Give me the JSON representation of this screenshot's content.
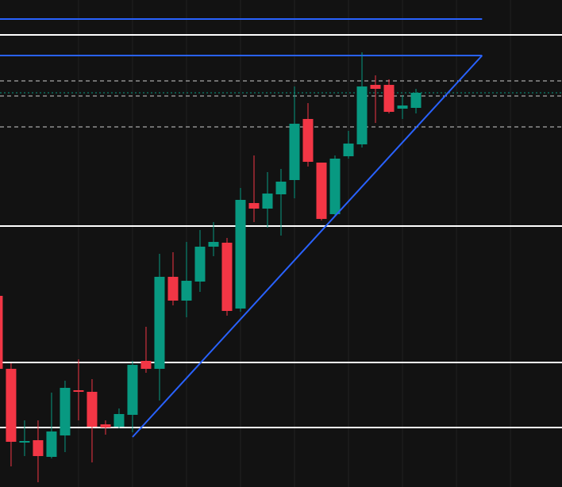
{
  "chart_data": {
    "type": "candlestick",
    "x": [
      0,
      1,
      2,
      3,
      4,
      5,
      6,
      7,
      8,
      9,
      10,
      11,
      12,
      13,
      14,
      15,
      16,
      17,
      18,
      19,
      20,
      21,
      22,
      23,
      24,
      25,
      26,
      27,
      28,
      29,
      30,
      31
    ],
    "open": [
      241,
      149,
      56,
      59,
      38,
      65,
      122,
      120,
      79,
      76,
      91,
      159,
      149,
      265,
      235,
      259,
      303,
      308,
      225,
      358,
      351,
      369,
      387,
      464,
      409,
      344,
      417,
      432,
      507,
      507,
      477,
      478
    ],
    "high": [
      241,
      156,
      84,
      84,
      119,
      134,
      161,
      136,
      84,
      99,
      159,
      202,
      294,
      296,
      309,
      324,
      334,
      314,
      377,
      418,
      397,
      401,
      505,
      484,
      409,
      418,
      449,
      548,
      519,
      514,
      494,
      502
    ],
    "low": [
      144,
      26,
      39,
      6,
      36,
      44,
      84,
      31,
      66,
      74,
      69,
      144,
      109,
      229,
      214,
      246,
      291,
      216,
      221,
      334,
      327,
      317,
      364,
      404,
      336,
      342,
      414,
      428,
      459,
      471,
      464,
      471
    ],
    "close": [
      149,
      57,
      58,
      39,
      70,
      125,
      120,
      76,
      75,
      92,
      154,
      149,
      265,
      235,
      260,
      303,
      309,
      222,
      362,
      351,
      370,
      385,
      458,
      410,
      338,
      414,
      433,
      505,
      502,
      473,
      481,
      497
    ],
    "up_color": "#089981",
    "down_color": "#f23645",
    "xlim": [
      0.18,
      41.82
    ],
    "ylim": [
      0,
      614
    ],
    "xgrid": [
      6,
      10,
      14,
      18,
      22,
      26,
      30,
      34,
      38
    ],
    "hlines": [
      {
        "value": 590,
        "color": "#2962ff",
        "style": "solid",
        "x_end": 35.9
      },
      {
        "value": 544,
        "color": "#2962ff",
        "style": "solid",
        "x_end": 35.9
      },
      {
        "value": 570,
        "color": "#ffffff",
        "style": "solid"
      },
      {
        "value": 329,
        "color": "#ffffff",
        "style": "solid"
      },
      {
        "value": 157,
        "color": "#ffffff",
        "style": "solid"
      },
      {
        "value": 75,
        "color": "#ffffff",
        "style": "solid"
      },
      {
        "value": 512,
        "color": "#cccccc",
        "style": "dashed"
      },
      {
        "value": 493,
        "color": "#cccccc",
        "style": "dashed"
      },
      {
        "value": 454,
        "color": "#cccccc",
        "style": "dashed"
      },
      {
        "value": 497,
        "color": "#089981",
        "style": "dotted"
      }
    ],
    "trendlines": [
      {
        "x": [
          10,
          35.9
        ],
        "values": [
          63,
          544
        ],
        "color": "#2962ff"
      }
    ]
  }
}
